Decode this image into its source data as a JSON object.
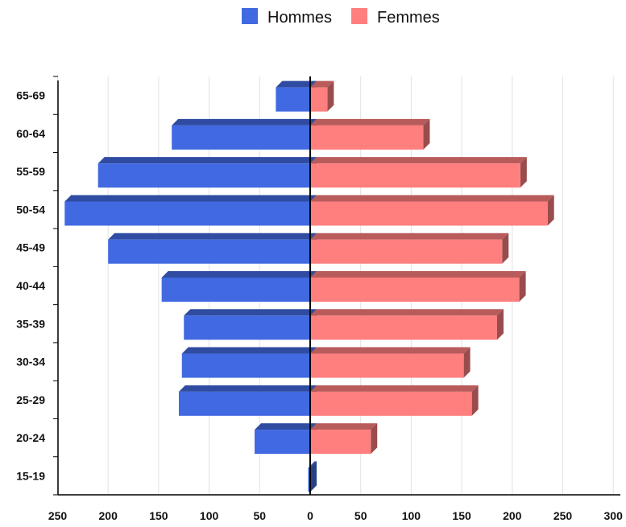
{
  "chart_data": {
    "type": "bar",
    "orientation": "horizontal",
    "layout": "population-pyramid",
    "categories": [
      "15-19",
      "20-24",
      "25-29",
      "30-34",
      "35-39",
      "40-44",
      "45-49",
      "50-54",
      "55-59",
      "60-64",
      "65-69"
    ],
    "series": [
      {
        "name": "Hommes",
        "color": "#4169E1",
        "values": [
          2,
          55,
          130,
          127,
          125,
          147,
          200,
          243,
          210,
          137,
          34
        ]
      },
      {
        "name": "Femmes",
        "color": "#FF7F7F",
        "values": [
          0,
          60,
          160,
          152,
          185,
          207,
          190,
          235,
          208,
          112,
          17
        ]
      }
    ],
    "x_tick_labels": [
      "250",
      "200",
      "150",
      "100",
      "50",
      "0",
      "50",
      "100",
      "150",
      "200",
      "250",
      "300"
    ],
    "x_tick_values": [
      -250,
      -200,
      -150,
      -100,
      -50,
      0,
      50,
      100,
      150,
      200,
      250,
      300
    ],
    "xlim": [
      -250,
      300
    ],
    "grid": "vertical",
    "legend_position": "top-center",
    "bar_style": "3d"
  }
}
